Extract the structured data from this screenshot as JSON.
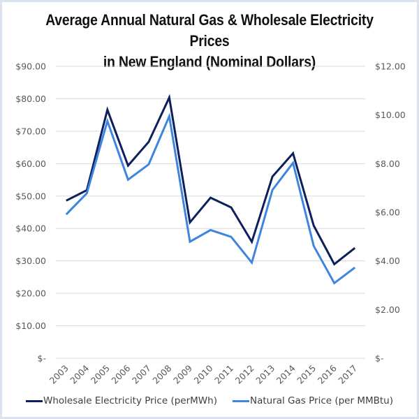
{
  "chart_data": {
    "type": "line",
    "title": "Average Annual Natural Gas & Wholesale Electricity Prices",
    "title_line2": "in New England (Nominal Dollars)",
    "categories": [
      "2003",
      "2004",
      "2005",
      "2006",
      "2007",
      "2008",
      "2009",
      "2010",
      "2011",
      "2012",
      "2013",
      "2014",
      "2015",
      "2016",
      "2017"
    ],
    "xlabel": "",
    "ylabel_left": "",
    "ylabel_right": "",
    "left_axis": {
      "ylim": [
        0,
        90
      ],
      "ticks": [
        0,
        10,
        20,
        30,
        40,
        50,
        60,
        70,
        80,
        90
      ],
      "tick_labels": [
        "$-",
        "$10.00",
        "$20.00",
        "$30.00",
        "$40.00",
        "$50.00",
        "$60.00",
        "$70.00",
        "$80.00",
        "$90.00"
      ]
    },
    "right_axis": {
      "ylim": [
        0,
        12
      ],
      "ticks": [
        0,
        2,
        4,
        6,
        8,
        10,
        12
      ],
      "tick_labels": [
        "$-",
        "$2.00",
        "$4.00",
        "$6.00",
        "$8.00",
        "$10.00",
        "$12.00"
      ]
    },
    "grid": true,
    "legend_position": "bottom",
    "series": [
      {
        "name": "Wholesale Electricity Price (perMWh)",
        "axis": "left",
        "color": "#0d1f5c",
        "values": [
          48.6,
          51.8,
          76.6,
          59.4,
          66.7,
          80.4,
          41.9,
          49.5,
          46.5,
          35.9,
          56.0,
          63.2,
          40.9,
          29.0,
          34.0
        ]
      },
      {
        "name": "Natural Gas Price (per MMBtu)",
        "axis": "right",
        "color": "#3d85e0",
        "values": [
          5.91,
          6.78,
          9.75,
          7.34,
          7.97,
          9.95,
          4.79,
          5.27,
          4.99,
          3.93,
          6.92,
          8.03,
          4.62,
          3.09,
          3.73
        ]
      }
    ]
  },
  "colors": {
    "gridline": "#d9d9d9",
    "frame_border": "#dbe3ee"
  }
}
